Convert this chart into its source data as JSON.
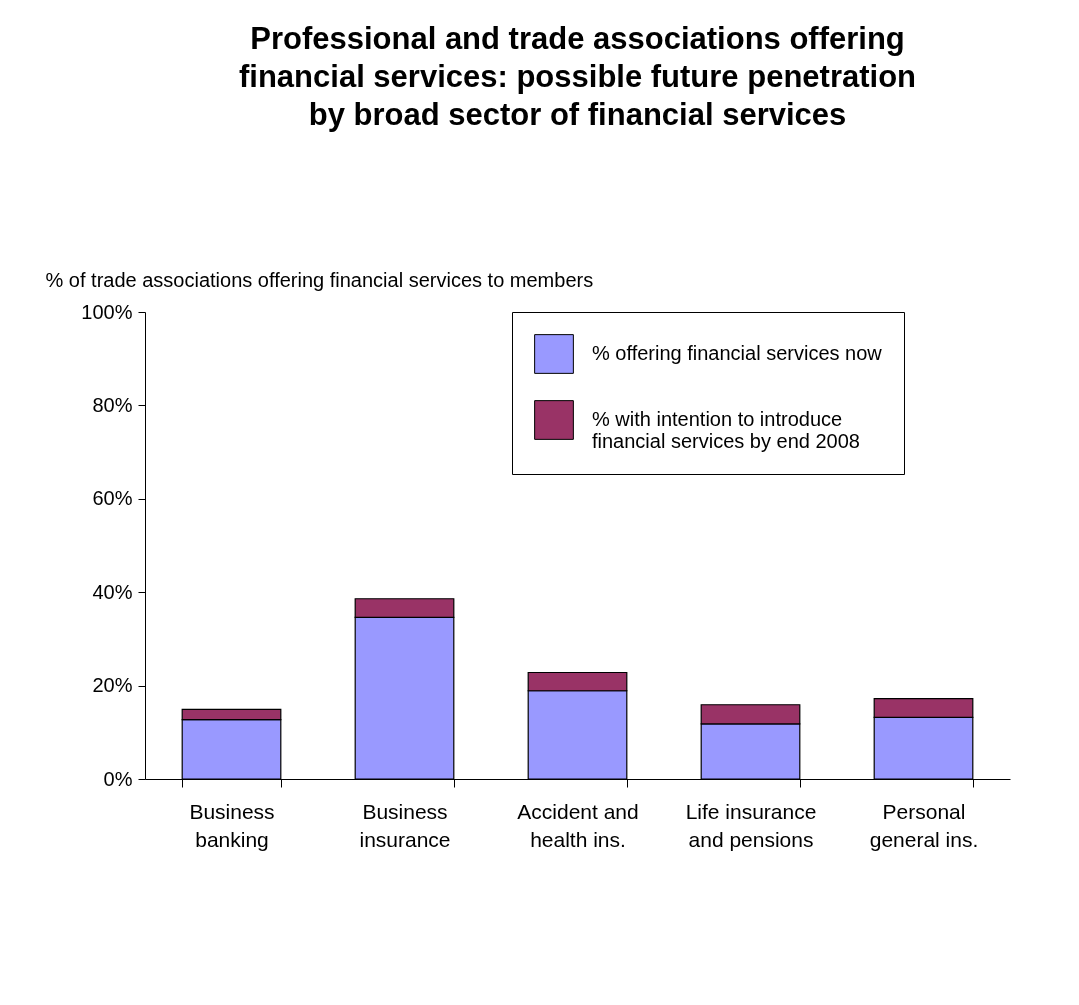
{
  "chart_data": {
    "type": "bar",
    "title": "Professional and trade associations offering financial services: possible future penetration by broad sector of financial services",
    "ylabel": "% of trade associations offering financial services to members",
    "categories": [
      "Business banking",
      "Business insurance",
      "Accident and health ins.",
      "Life insurance and pensions",
      "Personal general ins."
    ],
    "series": [
      {
        "name": "% offering financial services now",
        "color": "#9999ff",
        "values": [
          12.7,
          34.6,
          18.9,
          11.8,
          13.2
        ]
      },
      {
        "name": "% with intention to introduce financial services by end 2008",
        "color": "#993366",
        "values": [
          2.2,
          4.0,
          3.9,
          4.1,
          4.0
        ]
      }
    ],
    "stacked": true,
    "legend": "top right",
    "grid": false,
    "ylim": [
      0,
      100
    ],
    "yticks": [
      {
        "value": 0,
        "label": "0%"
      },
      {
        "value": 20,
        "label": "20%"
      },
      {
        "value": 40,
        "label": "40%"
      },
      {
        "value": 60,
        "label": "60%"
      },
      {
        "value": 80,
        "label": "80%"
      },
      {
        "value": 100,
        "label": "100%"
      }
    ]
  }
}
